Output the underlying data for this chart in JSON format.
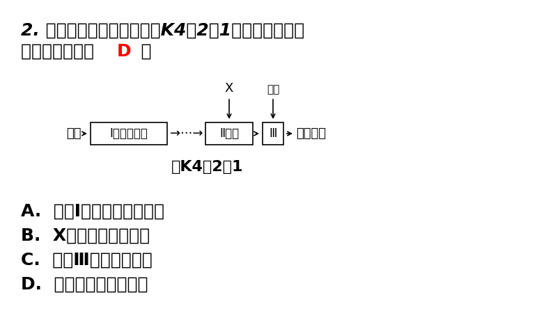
{
  "bg_color": "#ffffff",
  "title_line1": "2. 河水净化的主要步骤如图K4－2－1所示。下列有关",
  "title_line2": "说法错误的是（  ",
  "title_answer": "D",
  "title_line2_end": "  ）",
  "diagram_caption": "图K4－2－1",
  "river_label": "河水",
  "box1_label": "Ⅰ沉降、过滤",
  "dots": "···→",
  "box2_label": "Ⅱ吸附",
  "box3_label": "Ⅲ",
  "output_label": "净化的水",
  "x_label": "X",
  "liquid_cl_label": "液氯",
  "options": [
    "A.  步骤I可除去难溶性杂质",
    "B.  X试剂可以是活性炭",
    "C.  步骤Ⅲ可杀菌、消毒",
    "D.  净化后的水是纯净物"
  ],
  "font_size_title": 18,
  "font_size_diagram": 13,
  "font_size_options": 18,
  "font_size_caption": 16
}
